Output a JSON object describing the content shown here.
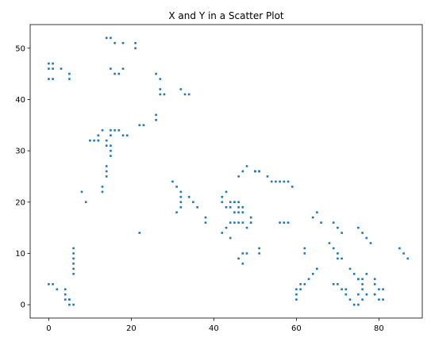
{
  "chart_data": {
    "type": "scatter",
    "title": "X and Y in a Scatter Plot",
    "xlabel": "",
    "ylabel": "",
    "xlim": [
      -4.5,
      90.5
    ],
    "ylim": [
      -2.6,
      54.6
    ],
    "xticks": [
      0,
      20,
      40,
      60,
      80
    ],
    "yticks": [
      0,
      10,
      20,
      30,
      40,
      50
    ],
    "grid": false,
    "marker_color": "#1f77b4",
    "x": [
      0,
      1,
      0,
      1,
      3,
      0,
      1,
      5,
      5,
      14,
      15,
      16,
      18,
      21,
      21,
      15,
      17,
      16,
      18,
      26,
      27,
      27,
      27,
      28,
      26,
      26,
      22,
      23,
      32,
      33,
      34,
      13,
      13,
      12,
      12,
      11,
      10,
      14,
      14,
      14,
      15,
      15,
      15,
      15,
      16,
      17,
      18,
      19,
      8,
      9,
      12,
      13,
      14,
      14,
      15,
      22,
      30,
      31,
      32,
      32,
      34,
      35,
      36,
      38,
      38,
      31,
      32,
      32,
      42,
      42,
      43,
      44,
      45,
      46,
      47,
      43,
      44,
      45,
      46,
      47,
      43,
      44,
      45,
      46,
      47,
      42,
      44,
      45,
      46,
      47,
      48,
      49,
      50,
      51,
      46,
      47,
      47,
      48,
      49,
      49,
      50,
      51,
      53,
      54,
      55,
      56,
      57,
      58,
      59,
      56,
      57,
      58,
      46,
      47,
      48,
      51,
      51,
      60,
      60,
      61,
      60,
      61,
      62,
      62,
      62,
      63,
      64,
      65,
      64,
      65,
      66,
      68,
      69,
      70,
      70,
      71,
      69,
      70,
      71,
      69,
      70,
      71,
      72,
      72,
      73,
      74,
      73,
      74,
      75,
      75,
      76,
      76,
      77,
      77,
      75,
      76,
      77,
      78,
      79,
      79,
      80,
      81,
      80,
      81,
      85,
      86,
      87,
      75,
      76,
      75,
      76,
      77,
      79,
      79,
      0,
      1,
      2,
      4,
      4,
      4,
      5,
      5,
      6,
      6,
      6,
      6,
      6,
      6,
      6,
      5
    ],
    "y": [
      47,
      47,
      46,
      46,
      46,
      44,
      44,
      45,
      44,
      52,
      52,
      51,
      51,
      51,
      50,
      46,
      45,
      45,
      46,
      45,
      44,
      42,
      41,
      41,
      37,
      36,
      35,
      35,
      42,
      41,
      41,
      22,
      23,
      33,
      32,
      32,
      32,
      27,
      26,
      25,
      31,
      30,
      29,
      34,
      34,
      34,
      33,
      33,
      22,
      20,
      32,
      34,
      31,
      32,
      33,
      14,
      24,
      23,
      22,
      21,
      21,
      20,
      19,
      17,
      16,
      18,
      19,
      20,
      21,
      20,
      22,
      20,
      20,
      19,
      19,
      19,
      19,
      18,
      18,
      18,
      15,
      16,
      16,
      16,
      16,
      14,
      13,
      20,
      20,
      18,
      15,
      16,
      26,
      26,
      9,
      10,
      8,
      10,
      17,
      16,
      26,
      26,
      25,
      24,
      24,
      24,
      24,
      24,
      23,
      16,
      16,
      16,
      25,
      26,
      27,
      11,
      10,
      1,
      2,
      3,
      3,
      4,
      4,
      10,
      11,
      5,
      6,
      7,
      17,
      18,
      16,
      12,
      11,
      10,
      9,
      9,
      16,
      15,
      14,
      4,
      4,
      3,
      3,
      2,
      1,
      0,
      7,
      6,
      5,
      5,
      4,
      3,
      2,
      2,
      15,
      14,
      13,
      12,
      5,
      4,
      3,
      1,
      1,
      3,
      11,
      10,
      9,
      2,
      1,
      0,
      5,
      6,
      2,
      2,
      4,
      4,
      3,
      3,
      2,
      1,
      0,
      1,
      6,
      7,
      8,
      9,
      10,
      11,
      0,
      1
    ]
  }
}
